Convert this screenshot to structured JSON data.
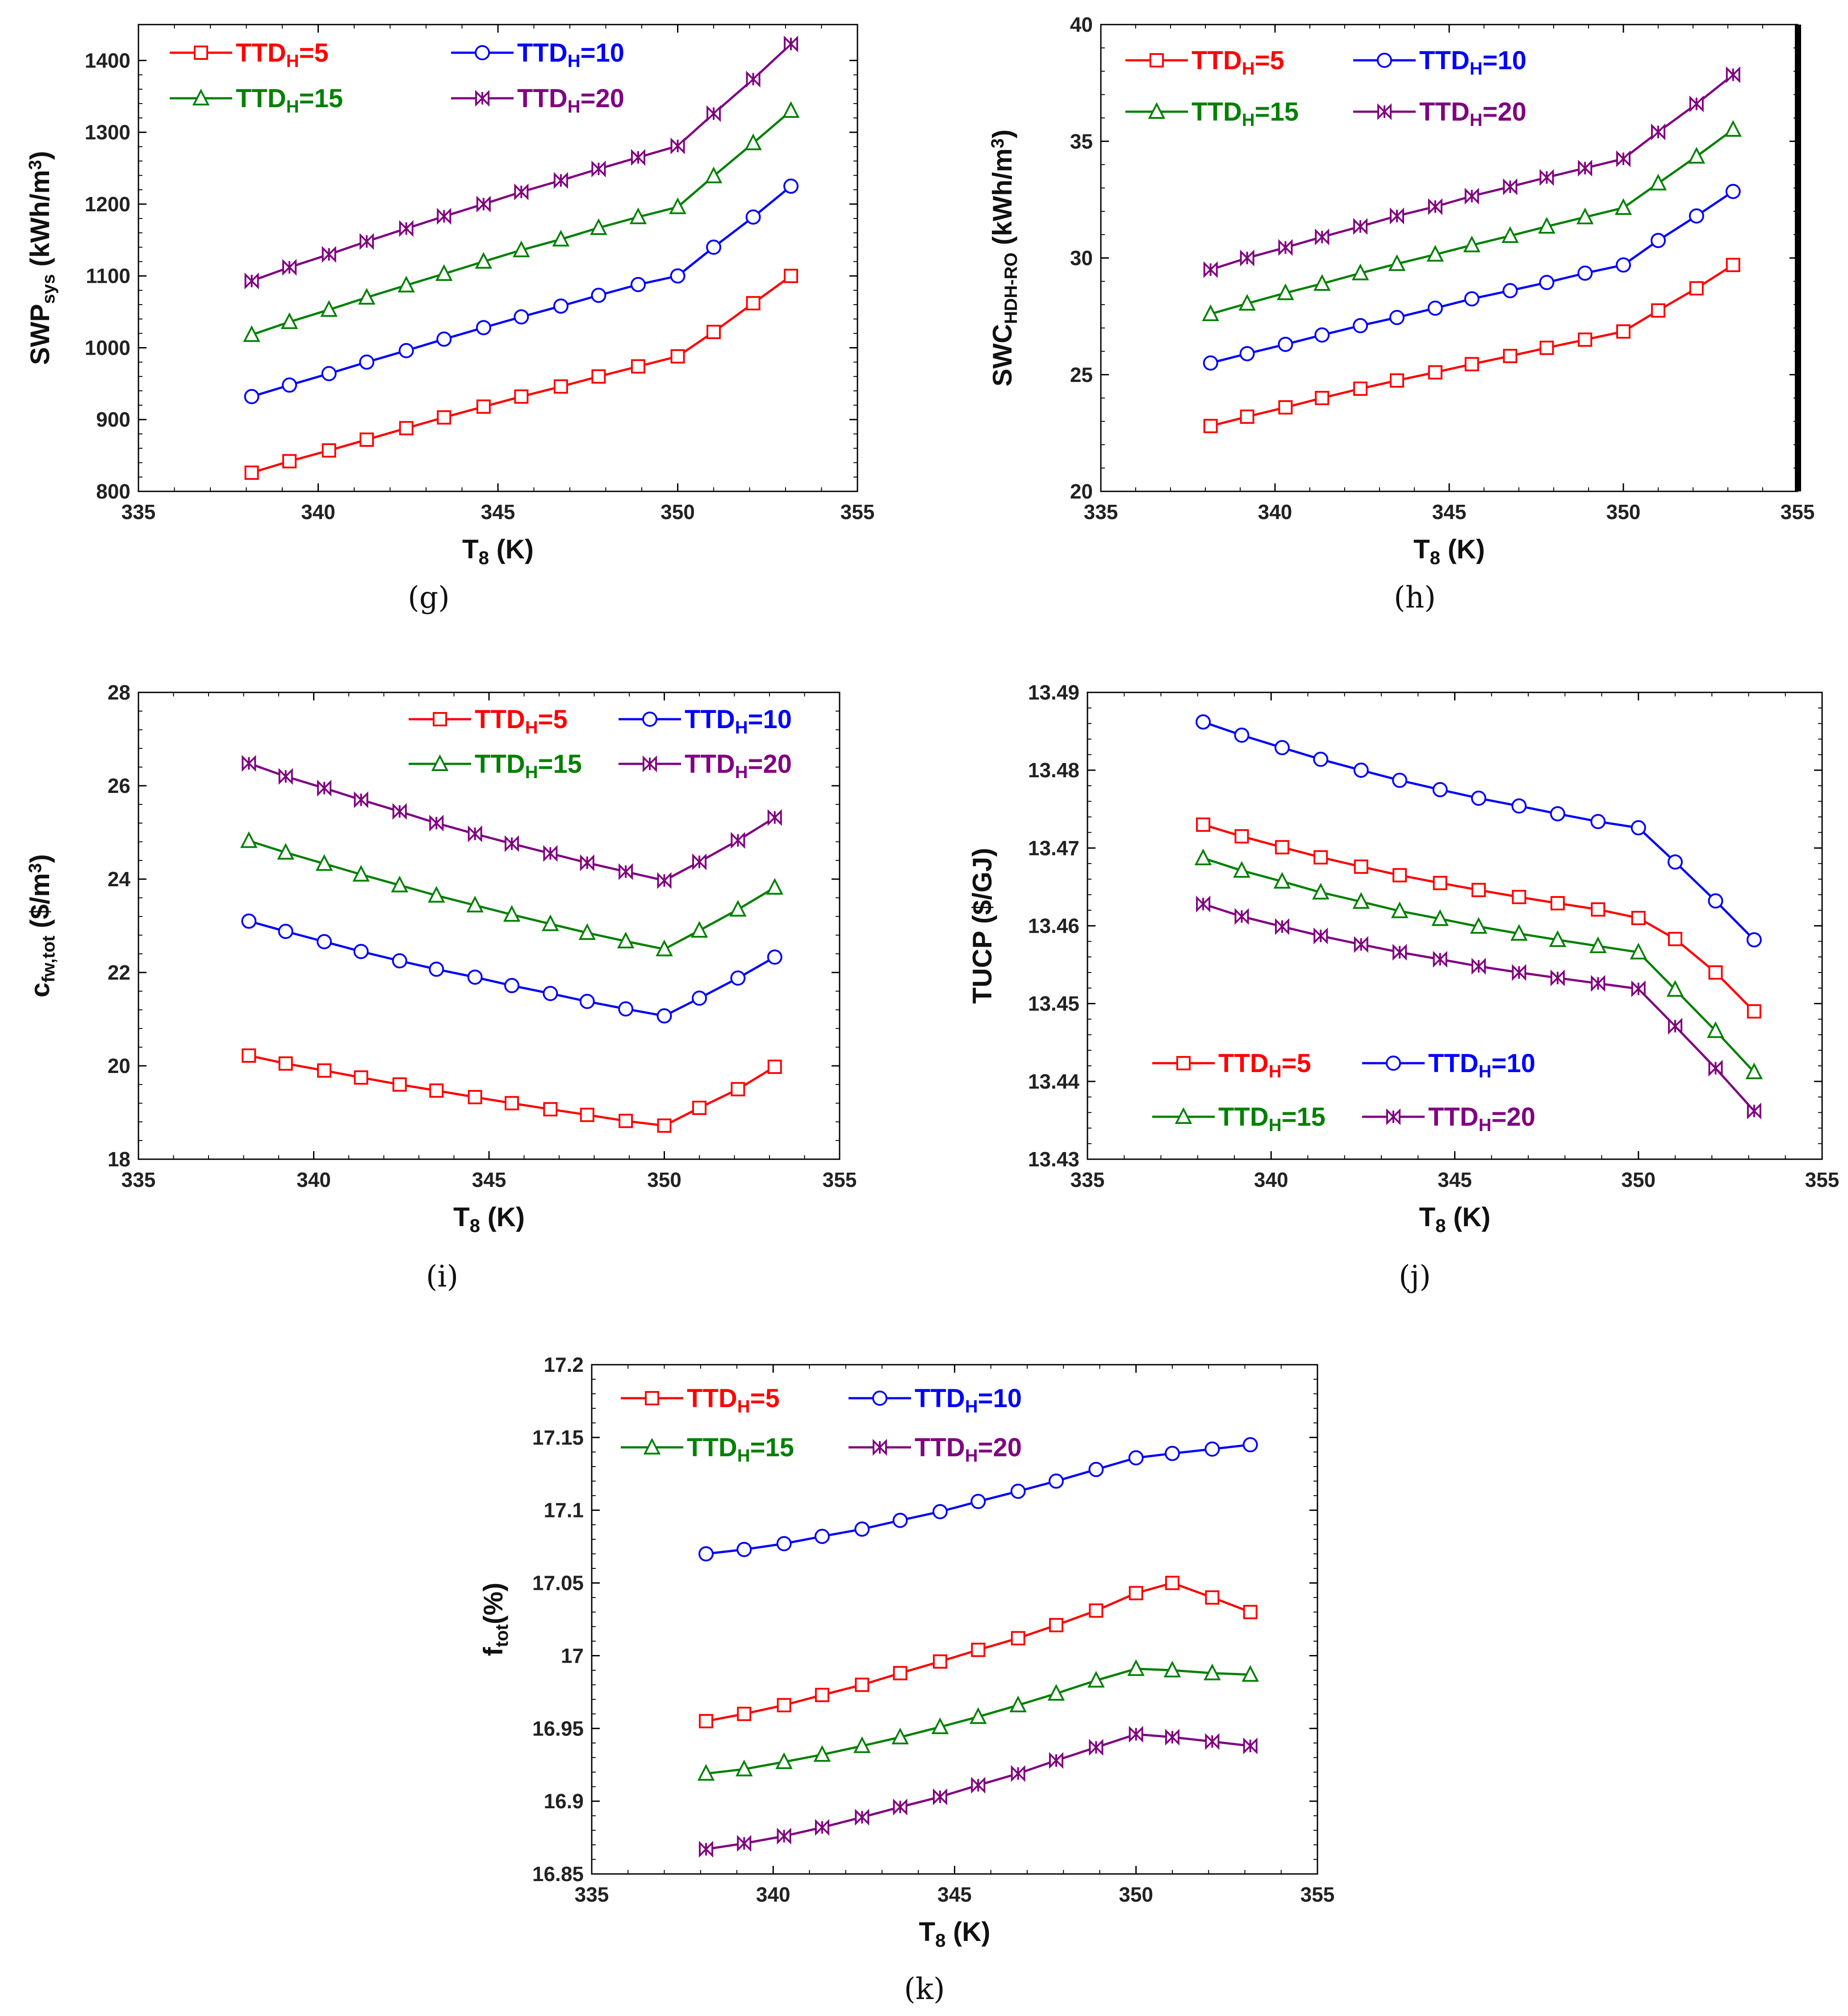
{
  "colors": {
    "s5": "#ff0000",
    "s10": "#0000ff",
    "s15": "#008000",
    "s20": "#800080"
  },
  "chart_data": [
    {
      "panel": "(g)",
      "type": "line",
      "x": [
        338.15,
        339.2,
        340.3,
        341.35,
        342.45,
        343.5,
        344.6,
        345.65,
        346.75,
        347.8,
        348.9,
        350.0,
        351.0,
        352.1,
        353.15
      ],
      "series": [
        {
          "key": "s5",
          "name": "TTD_H=5",
          "label_main": "TTD",
          "label_sub": "H",
          "label_tail": "=5",
          "marker": "square",
          "values": [
            826,
            842,
            857,
            872,
            888,
            903,
            918,
            932,
            946,
            960,
            974,
            988,
            1022,
            1062,
            1100
          ]
        },
        {
          "key": "s10",
          "name": "TTD_H=10",
          "label_main": "TTD",
          "label_sub": "H",
          "label_tail": "=10",
          "marker": "circle",
          "values": [
            932,
            948,
            964,
            980,
            996,
            1012,
            1028,
            1043,
            1058,
            1073,
            1088,
            1100,
            1140,
            1182,
            1225
          ]
        },
        {
          "key": "s15",
          "name": "TTD_H=15",
          "label_main": "TTD",
          "label_sub": "H",
          "label_tail": "=15",
          "marker": "triangle",
          "values": [
            1018,
            1036,
            1053,
            1070,
            1087,
            1103,
            1120,
            1136,
            1151,
            1167,
            1182,
            1196,
            1239,
            1285,
            1330
          ]
        },
        {
          "key": "s20",
          "name": "TTD_H=20",
          "label_main": "TTD",
          "label_sub": "H",
          "label_tail": "=20",
          "marker": "bowtie",
          "values": [
            1093,
            1112,
            1130,
            1148,
            1166,
            1183,
            1200,
            1217,
            1233,
            1249,
            1265,
            1281,
            1326,
            1374,
            1423
          ]
        }
      ],
      "xlim": [
        335,
        355
      ],
      "ylim": [
        800,
        1450
      ],
      "xticks": [
        335,
        340,
        345,
        350,
        355
      ],
      "yticks": [
        800,
        900,
        1000,
        1100,
        1200,
        1300,
        1400
      ],
      "xlabel": {
        "main": "T",
        "sub": "8",
        "tail": " (K)"
      },
      "ylabel": {
        "main": "SWP",
        "sub": "sys",
        "tail": " (kWh/m",
        "sup": "3",
        "end": ")"
      },
      "legend": "top-left"
    },
    {
      "panel": "(h)",
      "type": "line",
      "x": [
        338.15,
        339.2,
        340.3,
        341.35,
        342.45,
        343.5,
        344.6,
        345.65,
        346.75,
        347.8,
        348.9,
        350.0,
        351.0,
        352.1,
        353.15
      ],
      "series": [
        {
          "key": "s5",
          "name": "TTD_H=5",
          "label_main": "TTD",
          "label_sub": "H",
          "label_tail": "=5",
          "marker": "square",
          "values": [
            22.8,
            23.2,
            23.6,
            24.0,
            24.4,
            24.75,
            25.1,
            25.45,
            25.8,
            26.15,
            26.5,
            26.85,
            27.75,
            28.7,
            29.7
          ]
        },
        {
          "key": "s10",
          "name": "TTD_H=10",
          "label_main": "TTD",
          "label_sub": "H",
          "label_tail": "=10",
          "marker": "circle",
          "values": [
            25.5,
            25.9,
            26.3,
            26.7,
            27.1,
            27.45,
            27.85,
            28.25,
            28.6,
            28.95,
            29.35,
            29.7,
            30.75,
            31.8,
            32.85
          ]
        },
        {
          "key": "s15",
          "name": "TTD_H=15",
          "label_main": "TTD",
          "label_sub": "H",
          "label_tail": "=15",
          "marker": "triangle",
          "values": [
            27.6,
            28.05,
            28.5,
            28.9,
            29.35,
            29.75,
            30.15,
            30.55,
            30.95,
            31.35,
            31.75,
            32.15,
            33.2,
            34.35,
            35.5
          ]
        },
        {
          "key": "s20",
          "name": "TTD_H=20",
          "label_main": "TTD",
          "label_sub": "H",
          "label_tail": "=20",
          "marker": "bowtie",
          "values": [
            29.5,
            30.0,
            30.45,
            30.9,
            31.35,
            31.8,
            32.2,
            32.65,
            33.05,
            33.45,
            33.85,
            34.25,
            35.4,
            36.6,
            37.85
          ]
        }
      ],
      "xlim": [
        335,
        355
      ],
      "ylim": [
        20,
        40
      ],
      "xticks": [
        335,
        340,
        345,
        350,
        355
      ],
      "yticks": [
        20,
        25,
        30,
        35,
        40
      ],
      "xlabel": {
        "main": "T",
        "sub": "8",
        "tail": " (K)"
      },
      "ylabel": {
        "main": "SWC",
        "sub": "HDH-RO",
        "tail": " (kWh/m",
        "sup": "3",
        "end": ")"
      },
      "legend": "top-left"
    },
    {
      "panel": "(i)",
      "type": "line",
      "x": [
        338.15,
        339.2,
        340.3,
        341.35,
        342.45,
        343.5,
        344.6,
        345.65,
        346.75,
        347.8,
        348.9,
        350.0,
        351.0,
        352.1,
        353.15
      ],
      "series": [
        {
          "key": "s5",
          "name": "TTD_H=5",
          "label_main": "TTD",
          "label_sub": "H",
          "label_tail": "=5",
          "marker": "square",
          "values": [
            20.22,
            20.05,
            19.9,
            19.75,
            19.6,
            19.47,
            19.33,
            19.2,
            19.07,
            18.95,
            18.82,
            18.72,
            19.1,
            19.5,
            19.98
          ]
        },
        {
          "key": "s10",
          "name": "TTD_H=10",
          "label_main": "TTD",
          "label_sub": "H",
          "label_tail": "=10",
          "marker": "circle",
          "values": [
            23.1,
            22.88,
            22.66,
            22.45,
            22.25,
            22.07,
            21.9,
            21.72,
            21.55,
            21.38,
            21.22,
            21.07,
            21.45,
            21.88,
            22.33
          ]
        },
        {
          "key": "s15",
          "name": "TTD_H=15",
          "label_main": "TTD",
          "label_sub": "H",
          "label_tail": "=15",
          "marker": "triangle",
          "values": [
            24.82,
            24.57,
            24.33,
            24.1,
            23.87,
            23.65,
            23.44,
            23.24,
            23.04,
            22.85,
            22.67,
            22.5,
            22.9,
            23.35,
            23.82
          ]
        },
        {
          "key": "s20",
          "name": "TTD_H=20",
          "label_main": "TTD",
          "label_sub": "H",
          "label_tail": "=20",
          "marker": "bowtie",
          "values": [
            26.48,
            26.2,
            25.95,
            25.7,
            25.45,
            25.2,
            24.97,
            24.76,
            24.55,
            24.35,
            24.16,
            23.97,
            24.37,
            24.83,
            25.32
          ]
        }
      ],
      "xlim": [
        335,
        355
      ],
      "ylim": [
        18,
        28
      ],
      "xticks": [
        335,
        340,
        345,
        350,
        355
      ],
      "yticks": [
        18,
        20,
        22,
        24,
        26,
        28
      ],
      "xlabel": {
        "main": "T",
        "sub": "8",
        "tail": " (K)"
      },
      "ylabel": {
        "main": "c",
        "sub": "fw,tot",
        "tail": " ($/m",
        "sup": "3",
        "end": ")"
      },
      "legend": "top-right"
    },
    {
      "panel": "(j)",
      "type": "line",
      "x": [
        338.15,
        339.2,
        340.3,
        341.35,
        342.45,
        343.5,
        344.6,
        345.65,
        346.75,
        347.8,
        348.9,
        350.0,
        351.0,
        352.1,
        353.15
      ],
      "series": [
        {
          "key": "s5",
          "name": "TTD_H=5",
          "label_main": "TTD",
          "label_sub": "H",
          "label_tail": "=5",
          "marker": "square",
          "values": [
            13.473,
            13.4715,
            13.4701,
            13.4688,
            13.4676,
            13.4665,
            13.4655,
            13.4646,
            13.4637,
            13.4629,
            13.4621,
            13.461,
            13.4583,
            13.454,
            13.449
          ]
        },
        {
          "key": "s10",
          "name": "TTD_H=10",
          "label_main": "TTD",
          "label_sub": "H",
          "label_tail": "=10",
          "marker": "circle",
          "values": [
            13.4862,
            13.4845,
            13.4829,
            13.4814,
            13.48,
            13.4787,
            13.4775,
            13.4764,
            13.4754,
            13.4744,
            13.4734,
            13.4726,
            13.4682,
            13.4632,
            13.4582
          ]
        },
        {
          "key": "s15",
          "name": "TTD_H=15",
          "label_main": "TTD",
          "label_sub": "H",
          "label_tail": "=15",
          "marker": "triangle",
          "values": [
            13.4687,
            13.4671,
            13.4657,
            13.4643,
            13.4631,
            13.4619,
            13.4609,
            13.4599,
            13.459,
            13.4582,
            13.4574,
            13.4566,
            13.4518,
            13.4465,
            13.4412
          ]
        },
        {
          "key": "s20",
          "name": "TTD_H=20",
          "label_main": "TTD",
          "label_sub": "H",
          "label_tail": "=20",
          "marker": "bowtie",
          "values": [
            13.4628,
            13.4612,
            13.4599,
            13.4587,
            13.4576,
            13.4566,
            13.4557,
            13.4548,
            13.454,
            13.4533,
            13.4526,
            13.4519,
            13.4471,
            13.4417,
            13.4362
          ]
        }
      ],
      "xlim": [
        335,
        355
      ],
      "ylim": [
        13.43,
        13.49
      ],
      "xticks": [
        335,
        340,
        345,
        350,
        355
      ],
      "yticks": [
        13.43,
        13.44,
        13.45,
        13.46,
        13.47,
        13.48,
        13.49
      ],
      "xlabel": {
        "main": "T",
        "sub": "8",
        "tail": " (K)"
      },
      "ylabel": {
        "main": "TUCP ($/GJ)",
        "sub": "",
        "tail": "",
        "sup": "",
        "end": ""
      },
      "legend": "bottom-left"
    },
    {
      "panel": "(k)",
      "type": "line",
      "x": [
        338.15,
        339.2,
        340.3,
        341.35,
        342.45,
        343.5,
        344.6,
        345.65,
        346.75,
        347.8,
        348.9,
        350.0,
        351.0,
        352.1,
        353.15
      ],
      "series": [
        {
          "key": "s5",
          "name": "TTD_H=5",
          "label_main": "TTD",
          "label_sub": "H",
          "label_tail": "=5",
          "marker": "square",
          "values": [
            16.955,
            16.96,
            16.966,
            16.973,
            16.98,
            16.988,
            16.996,
            17.004,
            17.012,
            17.021,
            17.031,
            17.043,
            17.05,
            17.04,
            17.03
          ]
        },
        {
          "key": "s10",
          "name": "TTD_H=10",
          "label_main": "TTD",
          "label_sub": "H",
          "label_tail": "=10",
          "marker": "circle",
          "values": [
            17.07,
            17.073,
            17.077,
            17.082,
            17.087,
            17.093,
            17.099,
            17.106,
            17.113,
            17.12,
            17.128,
            17.136,
            17.139,
            17.142,
            17.145
          ]
        },
        {
          "key": "s15",
          "name": "TTD_H=15",
          "label_main": "TTD",
          "label_sub": "H",
          "label_tail": "=15",
          "marker": "triangle",
          "values": [
            16.919,
            16.922,
            16.927,
            16.932,
            16.938,
            16.944,
            16.951,
            16.958,
            16.966,
            16.974,
            16.983,
            16.991,
            16.99,
            16.988,
            16.987
          ]
        },
        {
          "key": "s20",
          "name": "TTD_H=20",
          "label_main": "TTD",
          "label_sub": "H",
          "label_tail": "=20",
          "marker": "bowtie",
          "values": [
            16.867,
            16.871,
            16.876,
            16.882,
            16.889,
            16.896,
            16.903,
            16.911,
            16.919,
            16.928,
            16.937,
            16.946,
            16.944,
            16.941,
            16.938
          ]
        }
      ],
      "xlim": [
        335,
        355
      ],
      "ylim": [
        16.85,
        17.2
      ],
      "xticks": [
        335,
        340,
        345,
        350,
        355
      ],
      "yticks": [
        16.85,
        16.9,
        16.95,
        17,
        17.05,
        17.1,
        17.15,
        17.2
      ],
      "ytick_labels": [
        "16.85",
        "16.9",
        "16.95",
        "17",
        "17.05",
        "17.1",
        "17.15",
        "17.2"
      ],
      "xlabel": {
        "main": "T",
        "sub": "8",
        "tail": " (K)"
      },
      "ylabel": {
        "main": "f",
        "sub": "tot",
        "tail": "(%)",
        "sup": "",
        "end": ""
      },
      "legend": "top-left"
    }
  ]
}
